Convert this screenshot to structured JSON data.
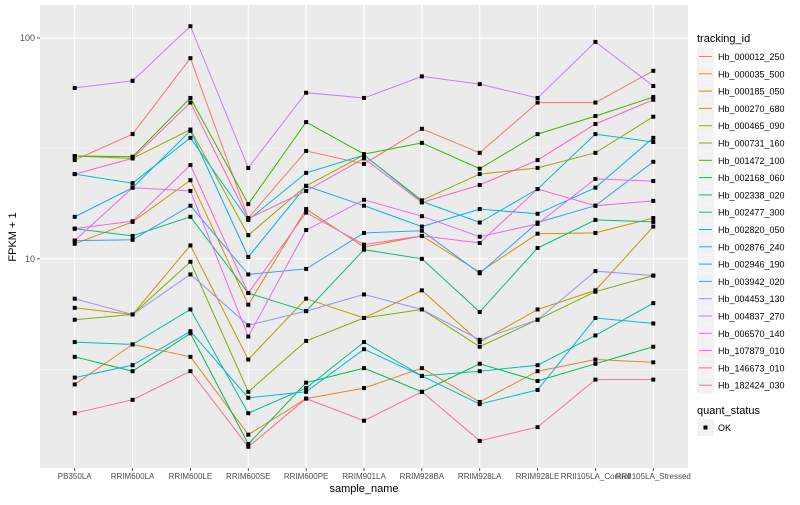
{
  "chart_data": {
    "type": "line",
    "xlabel": "sample_name",
    "ylabel": "FPKM + 1",
    "y_scale": "log10",
    "ylim": [
      1.13,
      141
    ],
    "y_ticks": [
      10,
      100
    ],
    "y_tick_labels": [
      "10",
      "100"
    ],
    "grid": true,
    "legend_position": "right",
    "categories": [
      "PB350LA",
      "RRIM600LA",
      "RRIM600LE",
      "RRIM600SE",
      "RRIM600PE",
      "RRIM901LA",
      "RRIM928BA",
      "RRIM928LA",
      "RRIM928LE",
      "RRII105LA_Control",
      "RRII105LA_Stressed"
    ],
    "legend_title": "tracking_id",
    "shape_legend_title": "quant_status",
    "shape_legend_items": [
      "OK"
    ],
    "point_color": "#000000",
    "series": [
      {
        "name": "Hb_000012_250",
        "color": "#F8766D",
        "values": [
          28.0,
          36.7,
          81,
          15.3,
          30.8,
          26.9,
          38.8,
          30.2,
          51,
          51,
          71
        ]
      },
      {
        "name": "Hb_000035_500",
        "color": "#EA8331",
        "values": [
          2.7,
          4.1,
          3.6,
          1.6,
          2.33,
          2.6,
          3.2,
          2.25,
          3.1,
          3.5,
          3.4
        ]
      },
      {
        "name": "Hb_000185_050",
        "color": "#D89000",
        "values": [
          11.7,
          14.7,
          22.7,
          6.2,
          16.8,
          11.3,
          12.7,
          8.7,
          13.0,
          13.1,
          15.3
        ]
      },
      {
        "name": "Hb_000270_680",
        "color": "#C09B00",
        "values": [
          6.0,
          5.6,
          11.5,
          3.5,
          6.6,
          5.4,
          7.2,
          4.2,
          5.9,
          7.2,
          14.0
        ]
      },
      {
        "name": "Hb_000465_090",
        "color": "#A3A500",
        "values": [
          29.2,
          28.5,
          38.5,
          12.8,
          21.4,
          29.5,
          18.4,
          24.2,
          25.8,
          30.2,
          44
        ]
      },
      {
        "name": "Hb_000731_160",
        "color": "#7CAE00",
        "values": [
          5.3,
          5.6,
          9.7,
          2.5,
          4.25,
          5.4,
          5.9,
          4.0,
          5.3,
          7.1,
          8.4
        ]
      },
      {
        "name": "Hb_001472_100",
        "color": "#39B600",
        "values": [
          29.2,
          29.0,
          53.5,
          17.7,
          41.6,
          29.8,
          33.5,
          25.6,
          36.7,
          44.3,
          54
        ]
      },
      {
        "name": "Hb_002168_060",
        "color": "#00BB4E",
        "values": [
          3.6,
          3.1,
          4.6,
          1.45,
          2.75,
          3.2,
          2.5,
          3.35,
          2.8,
          3.35,
          4.0
        ]
      },
      {
        "name": "Hb_002338_020",
        "color": "#00BF7D",
        "values": [
          13.7,
          12.7,
          15.5,
          7.0,
          5.8,
          11.0,
          10.0,
          5.75,
          11.2,
          15.0,
          14.7
        ]
      },
      {
        "name": "Hb_002477_300",
        "color": "#00C1A3",
        "values": [
          4.2,
          4.1,
          5.9,
          2.0,
          2.6,
          4.2,
          2.95,
          3.1,
          3.3,
          4.5,
          6.3
        ]
      },
      {
        "name": "Hb_002820_050",
        "color": "#00BFC4",
        "values": [
          24.2,
          22,
          35.3,
          15.0,
          24.5,
          29.5,
          18.2,
          14.6,
          20.7,
          36.7,
          33.8
        ]
      },
      {
        "name": "Hb_002876_240",
        "color": "#00BAE0",
        "values": [
          2.9,
          3.3,
          4.7,
          2.35,
          2.5,
          3.9,
          2.95,
          2.2,
          2.55,
          5.4,
          5.1
        ]
      },
      {
        "name": "Hb_002946_190",
        "color": "#00B0F6",
        "values": [
          15.5,
          21,
          38,
          10.2,
          21.4,
          17.4,
          14.0,
          16.8,
          16.0,
          21,
          35.3
        ]
      },
      {
        "name": "Hb_003942_020",
        "color": "#35A2FF",
        "values": [
          12.1,
          12.2,
          17.4,
          8.5,
          9.0,
          13.1,
          13.4,
          8.6,
          14.6,
          17.4,
          27.5
        ]
      },
      {
        "name": "Hb_004453_130",
        "color": "#9590FF",
        "values": [
          6.6,
          5.6,
          8.5,
          5.0,
          5.8,
          6.9,
          5.9,
          4.3,
          5.3,
          8.8,
          8.4
        ]
      },
      {
        "name": "Hb_004837_270",
        "color": "#C77CFF",
        "values": [
          59.4,
          64,
          113,
          25.8,
          56.5,
          53.5,
          67,
          61.8,
          53.5,
          96,
          60.6
        ]
      },
      {
        "name": "Hb_006570_140",
        "color": "#E76BF3",
        "values": [
          12.1,
          21,
          20.3,
          4.45,
          13.5,
          18.5,
          15.6,
          12.6,
          14.4,
          23,
          22.5
        ]
      },
      {
        "name": "Hb_107879_010",
        "color": "#FA62DB",
        "values": [
          13.7,
          14.8,
          26.6,
          7.0,
          16.2,
          11.6,
          12.7,
          11.8,
          20.7,
          17.4,
          18.3
        ]
      },
      {
        "name": "Hb_146673_010",
        "color": "#FF62BC",
        "values": [
          24.2,
          28.5,
          51,
          15.2,
          20.3,
          28.5,
          18.0,
          21.6,
          28,
          40.8,
          52.5
        ]
      },
      {
        "name": "Hb_182424_030",
        "color": "#FF6C91",
        "values": [
          2.0,
          2.3,
          3.1,
          1.41,
          2.33,
          1.85,
          2.5,
          1.5,
          1.73,
          2.84,
          2.84
        ]
      }
    ]
  }
}
